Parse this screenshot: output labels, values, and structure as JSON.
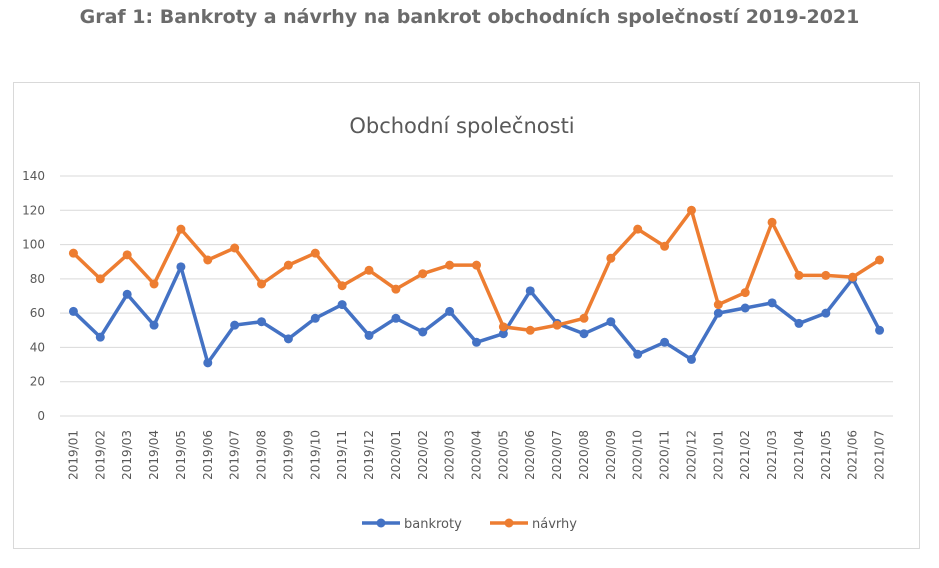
{
  "heading": "Graf 1: Bankroty a návrhy na bankrot obchodních společností 2019-2021",
  "colors": {
    "bankroty": "#4472c4",
    "navrhy": "#ed7d31",
    "grid": "#d9d9d9",
    "text": "#595959"
  },
  "chart_data": {
    "type": "line",
    "title": "Obchodní společnosti",
    "xlabel": "",
    "ylabel": "",
    "ylim": [
      0,
      140
    ],
    "yticks": [
      0,
      20,
      40,
      60,
      80,
      100,
      120,
      140
    ],
    "grid": true,
    "legend_position": "bottom",
    "categories": [
      "2019/01",
      "2019/02",
      "2019/03",
      "2019/04",
      "2019/05",
      "2019/06",
      "2019/07",
      "2019/08",
      "2019/09",
      "2019/10",
      "2019/11",
      "2019/12",
      "2020/01",
      "2020/02",
      "2020/03",
      "2020/04",
      "2020/05",
      "2020/06",
      "2020/07",
      "2020/08",
      "2020/09",
      "2020/10",
      "2020/11",
      "2020/12",
      "2021/01",
      "2021/02",
      "2021/03",
      "2021/04",
      "2021/05",
      "2021/06",
      "2021/07"
    ],
    "series": [
      {
        "name": "bankroty",
        "values": [
          61,
          46,
          71,
          53,
          87,
          31,
          53,
          55,
          45,
          57,
          65,
          47,
          57,
          49,
          61,
          43,
          48,
          73,
          54,
          48,
          55,
          36,
          43,
          33,
          60,
          63,
          66,
          54,
          60,
          80,
          50
        ]
      },
      {
        "name": "návrhy",
        "values": [
          95,
          80,
          94,
          77,
          109,
          91,
          98,
          77,
          88,
          95,
          76,
          85,
          74,
          83,
          88,
          88,
          52,
          50,
          53,
          57,
          92,
          109,
          99,
          120,
          65,
          72,
          113,
          82,
          82,
          81,
          91
        ]
      }
    ]
  }
}
